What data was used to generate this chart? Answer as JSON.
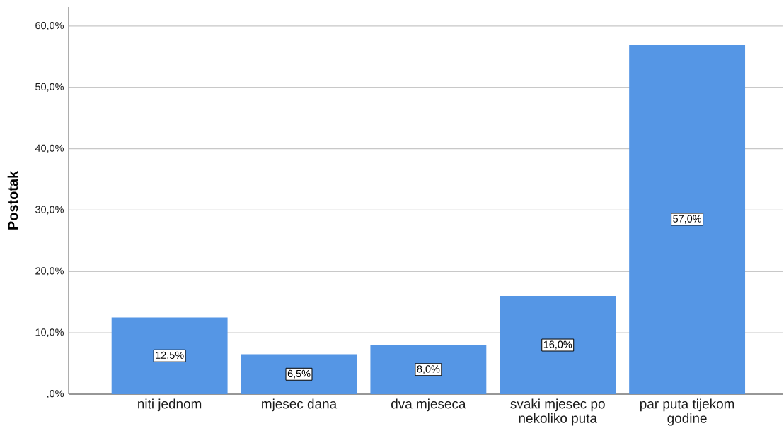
{
  "chart_data": {
    "type": "bar",
    "ylabel": "Postotak",
    "categories": [
      "niti jednom",
      "mjesec dana",
      "dva mjeseca",
      "svaki mjesec po nekoliko puta",
      "par puta tijekom godine"
    ],
    "values": [
      12.5,
      6.5,
      8.0,
      16.0,
      57.0
    ],
    "value_labels": [
      "12,5%",
      "6,5%",
      "8,0%",
      "16,0%",
      "57,0%"
    ],
    "color": "#5596e5",
    "ylim": [
      0,
      63.1
    ],
    "yticks": [
      {
        "value": 0,
        "label": ",0%"
      },
      {
        "value": 10,
        "label": "10,0%"
      },
      {
        "value": 20,
        "label": "20,0%"
      },
      {
        "value": 30,
        "label": "30,0%"
      },
      {
        "value": 40,
        "label": "40,0%"
      },
      {
        "value": 50,
        "label": "50,0%"
      },
      {
        "value": 60,
        "label": "60,0%"
      }
    ],
    "grid": "y"
  }
}
